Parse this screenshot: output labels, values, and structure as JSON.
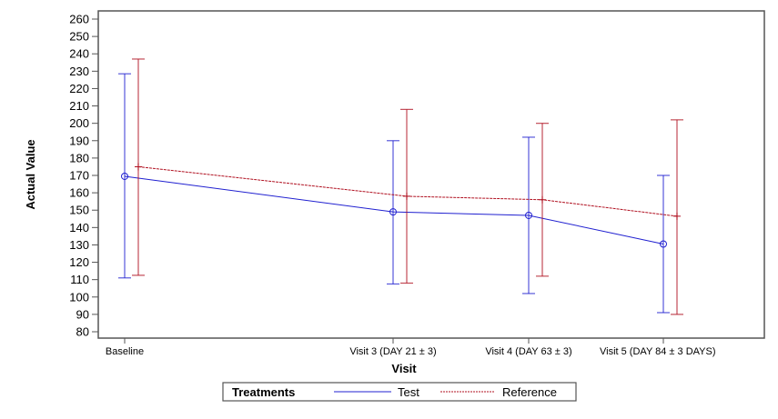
{
  "chart_data": {
    "type": "line",
    "title": "",
    "xlabel": "Visit",
    "ylabel": "Actual Value",
    "ylim": [
      80,
      260
    ],
    "yticks": [
      80,
      90,
      100,
      110,
      120,
      130,
      140,
      150,
      160,
      170,
      180,
      190,
      200,
      210,
      220,
      230,
      240,
      250,
      260
    ],
    "categories": [
      "Baseline",
      "Visit 3 (DAY 21 ± 3)",
      "Visit 4 (DAY 63 ± 3)",
      "Visit 5 (DAY 84 ± 3 DAYS)"
    ],
    "grid": false,
    "legend": {
      "title": "Treatments",
      "placement": "bottom"
    },
    "series": [
      {
        "name": "Test",
        "color": "#2020d0",
        "line": "solid",
        "marker": "circle",
        "values": [
          169.5,
          149,
          147,
          130.5
        ],
        "upper": [
          228.5,
          190,
          192,
          170
        ],
        "lower": [
          111,
          107.5,
          102,
          91
        ]
      },
      {
        "name": "Reference",
        "color": "#b01020",
        "line": "dashed",
        "marker": "plus",
        "values": [
          175,
          158,
          156,
          146.5
        ],
        "upper": [
          237,
          208,
          200,
          202
        ],
        "lower": [
          112.5,
          108,
          112,
          90
        ]
      }
    ]
  }
}
